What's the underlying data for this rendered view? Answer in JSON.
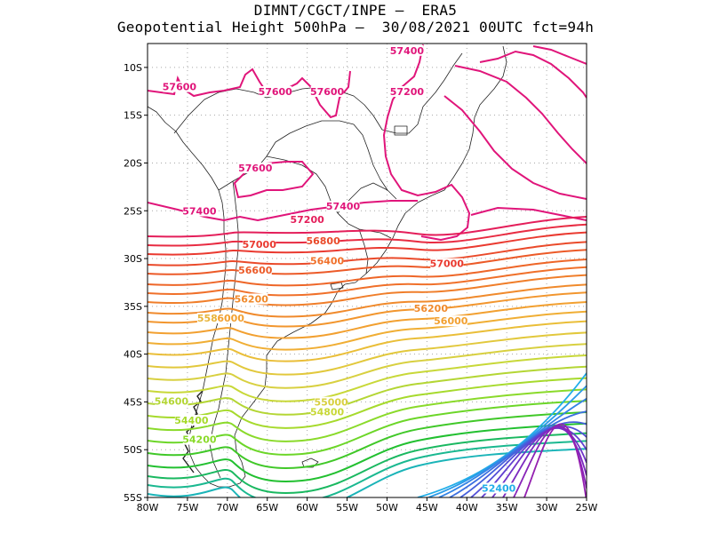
{
  "title_line1": "DIMNT/CGCT/INPE –  ERA5",
  "title_line2": "Geopotential Height 500hPa –  30/08/2021 00UTC fct=94h",
  "lat_ticks": [
    "10S",
    "15S",
    "20S",
    "25S",
    "30S",
    "35S",
    "40S",
    "45S",
    "50S",
    "55S"
  ],
  "lon_ticks": [
    "80W",
    "75W",
    "70W",
    "65W",
    "60W",
    "55W",
    "50W",
    "45W",
    "40W",
    "35W",
    "30W",
    "25W"
  ],
  "lon_range": [
    -80,
    -25
  ],
  "lat_range": [
    -55,
    -7.5
  ],
  "contour_labels": [
    {
      "text": "57600",
      "lon": -76.0,
      "lat": -12.3,
      "color": "#e0157a"
    },
    {
      "text": "57600",
      "lon": -64.0,
      "lat": -12.8,
      "color": "#e0157a"
    },
    {
      "text": "57600",
      "lon": -57.5,
      "lat": -12.8,
      "color": "#e0157a"
    },
    {
      "text": "57400",
      "lon": -47.5,
      "lat": -8.5,
      "color": "#e0157a"
    },
    {
      "text": "57200",
      "lon": -47.5,
      "lat": -12.8,
      "color": "#e0157a"
    },
    {
      "text": "57600",
      "lon": -66.5,
      "lat": -20.8,
      "color": "#e0157a"
    },
    {
      "text": "57400",
      "lon": -73.5,
      "lat": -25.3,
      "color": "#e0157a"
    },
    {
      "text": "57400",
      "lon": -55.5,
      "lat": -24.8,
      "color": "#e0157a"
    },
    {
      "text": "57200",
      "lon": -60.0,
      "lat": -26.2,
      "color": "#e41e5a"
    },
    {
      "text": "57000",
      "lon": -66.0,
      "lat": -28.8,
      "color": "#ea3a30"
    },
    {
      "text": "56800",
      "lon": -58.0,
      "lat": -28.4,
      "color": "#ea4a2a"
    },
    {
      "text": "57000",
      "lon": -42.5,
      "lat": -30.8,
      "color": "#ea3a30"
    },
    {
      "text": "56600",
      "lon": -66.5,
      "lat": -31.5,
      "color": "#ec5a28"
    },
    {
      "text": "56400",
      "lon": -57.5,
      "lat": -30.5,
      "color": "#f0702a"
    },
    {
      "text": "56200",
      "lon": -67.0,
      "lat": -34.5,
      "color": "#f08a2c"
    },
    {
      "text": "56200",
      "lon": -44.5,
      "lat": -35.5,
      "color": "#f08a2c"
    },
    {
      "text": "56000",
      "lon": -42.0,
      "lat": -36.8,
      "color": "#f2a030"
    },
    {
      "text": "56000",
      "lon": -70.0,
      "lat": -36.5,
      "color": "#f2a030"
    },
    {
      "text": "558",
      "lon": -72.5,
      "lat": -36.5,
      "color": "#e8b43a"
    },
    {
      "text": "55000",
      "lon": -57.0,
      "lat": -45.3,
      "color": "#d8d040"
    },
    {
      "text": "54800",
      "lon": -57.5,
      "lat": -46.3,
      "color": "#c8d838"
    },
    {
      "text": "54600",
      "lon": -77.0,
      "lat": -45.2,
      "color": "#b4d634"
    },
    {
      "text": "54400",
      "lon": -74.5,
      "lat": -47.2,
      "color": "#a6da2c"
    },
    {
      "text": "54200",
      "lon": -73.5,
      "lat": -49.2,
      "color": "#8ada2a"
    },
    {
      "text": "52400",
      "lon": -36.0,
      "lat": -54.3,
      "color": "#22aee8"
    }
  ]
}
